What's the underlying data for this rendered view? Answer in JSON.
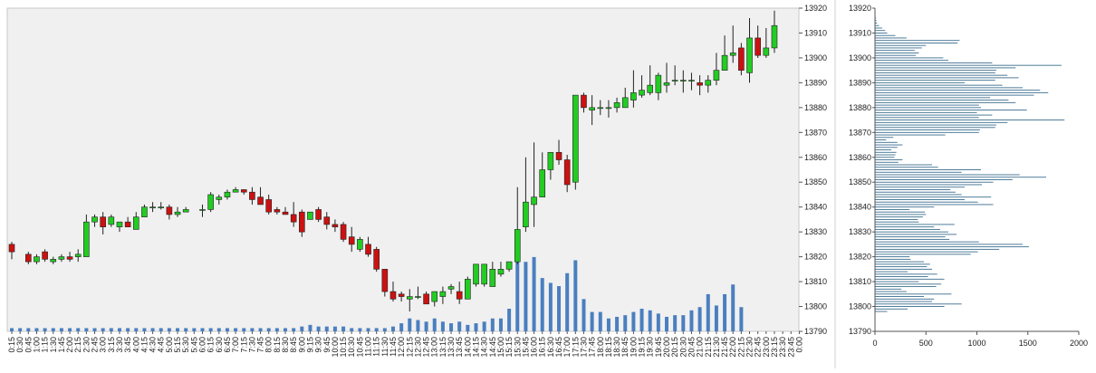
{
  "chart_data": [
    {
      "type": "candlestick",
      "title": "",
      "xlabel": "",
      "ylabel": "",
      "ylim": [
        13790,
        13920
      ],
      "yticks": [
        13790,
        13800,
        13810,
        13820,
        13830,
        13840,
        13850,
        13860,
        13870,
        13880,
        13890,
        13900,
        13910,
        13920
      ],
      "grid": false,
      "up_color": "#22cc22",
      "down_color": "#cc1111",
      "volume_color": "#4a7fc0",
      "plot_bg": "#f0f0f0",
      "x": [
        "0:15",
        "0:30",
        "0:45",
        "1:00",
        "1:15",
        "1:30",
        "1:45",
        "2:00",
        "2:15",
        "2:30",
        "2:45",
        "3:00",
        "3:15",
        "3:30",
        "3:45",
        "4:00",
        "4:15",
        "4:30",
        "4:45",
        "5:00",
        "5:15",
        "5:30",
        "5:45",
        "6:00",
        "6:15",
        "6:30",
        "6:45",
        "7:00",
        "7:15",
        "7:30",
        "7:45",
        "8:00",
        "8:15",
        "8:30",
        "8:45",
        "9:00",
        "9:15",
        "9:30",
        "9:45",
        "10:00",
        "10:15",
        "10:30",
        "10:45",
        "11:00",
        "11:15",
        "11:30",
        "11:45",
        "12:00",
        "12:15",
        "12:30",
        "12:45",
        "13:00",
        "13:15",
        "13:30",
        "13:45",
        "14:00",
        "14:15",
        "14:30",
        "14:45",
        "15:00",
        "15:15",
        "15:30",
        "15:45",
        "16:00",
        "16:15",
        "16:30",
        "16:45",
        "17:00",
        "17:15",
        "17:30",
        "17:45",
        "18:00",
        "18:15",
        "18:30",
        "18:45",
        "19:00",
        "19:15",
        "19:30",
        "19:45",
        "20:00",
        "20:15",
        "20:30",
        "20:45",
        "21:00",
        "21:15",
        "21:30",
        "21:45",
        "22:00",
        "22:15",
        "22:30",
        "22:45",
        "23:00",
        "23:15",
        "23:30",
        "23:45",
        "0:00"
      ],
      "ohlc": [
        [
          13825,
          13826,
          13819,
          13822
        ],
        null,
        [
          13821,
          13822,
          13817,
          13818
        ],
        [
          13818,
          13821,
          13817,
          13820
        ],
        [
          13822,
          13823,
          13818,
          13819
        ],
        [
          13818,
          13820,
          13817,
          13819
        ],
        [
          13819,
          13821,
          13818,
          13820
        ],
        [
          13820,
          13822,
          13818,
          13819
        ],
        [
          13820,
          13823,
          13818,
          13821
        ],
        [
          13820,
          13837,
          13820,
          13834
        ],
        [
          13834,
          13837,
          13832,
          13836
        ],
        [
          13836,
          13838,
          13829,
          13832
        ],
        [
          13833,
          13837,
          13832,
          13836
        ],
        [
          13832,
          13834,
          13830,
          13834
        ],
        [
          13834,
          13836,
          13832,
          13832
        ],
        [
          13831,
          13838,
          13831,
          13836
        ],
        [
          13836,
          13841,
          13836,
          13840
        ],
        [
          13840,
          13842,
          13838,
          13840
        ],
        [
          13840,
          13842,
          13839,
          13840
        ],
        [
          13840,
          13841,
          13835,
          13837
        ],
        [
          13837,
          13840,
          13836,
          13838
        ],
        [
          13838,
          13840,
          13838,
          13839
        ],
        null,
        [
          13839,
          13841,
          13836,
          13839
        ],
        [
          13839,
          13846,
          13838,
          13845
        ],
        [
          13843,
          13845,
          13841,
          13844
        ],
        [
          13844,
          13847,
          13843,
          13846
        ],
        [
          13846,
          13848,
          13846,
          13847
        ],
        [
          13847,
          13847,
          13845,
          13846
        ],
        [
          13846,
          13848,
          13841,
          13843
        ],
        [
          13844,
          13848,
          13841,
          13841
        ],
        [
          13843,
          13845,
          13837,
          13838
        ],
        [
          13839,
          13840,
          13837,
          13838
        ],
        [
          13838,
          13840,
          13837,
          13837
        ],
        [
          13837,
          13842,
          13832,
          13834
        ],
        [
          13838,
          13839,
          13828,
          13830
        ],
        [
          13835,
          13838,
          13835,
          13838
        ],
        [
          13839,
          13840,
          13834,
          13835
        ],
        [
          13836,
          13838,
          13831,
          13833
        ],
        [
          13833,
          13835,
          13830,
          13832
        ],
        [
          13833,
          13834,
          13826,
          13827
        ],
        [
          13828,
          13832,
          13822,
          13825
        ],
        [
          13823,
          13828,
          13822,
          13827
        ],
        [
          13825,
          13828,
          13820,
          13821
        ],
        [
          13823,
          13824,
          13814,
          13815
        ],
        [
          13815,
          13815,
          13804,
          13806
        ],
        [
          13806,
          13810,
          13802,
          13803
        ],
        [
          13805,
          13806,
          13802,
          13804
        ],
        [
          13803,
          13807,
          13798,
          13804
        ],
        [
          13804,
          13808,
          13803,
          13804
        ],
        [
          13805,
          13806,
          13801,
          13801
        ],
        [
          13802,
          13806,
          13800,
          13806
        ],
        [
          13804,
          13808,
          13801,
          13806
        ],
        [
          13807,
          13809,
          13805,
          13808
        ],
        [
          13806,
          13810,
          13801,
          13803
        ],
        [
          13803,
          13812,
          13803,
          13811
        ],
        [
          13809,
          13816,
          13808,
          13817
        ],
        [
          13809,
          13817,
          13808,
          13817
        ],
        [
          13808,
          13818,
          13808,
          13815
        ],
        [
          13813,
          13818,
          13812,
          13815
        ],
        [
          13815,
          13818,
          13814,
          13818
        ],
        [
          13818,
          13848,
          13817,
          13831
        ],
        [
          13832,
          13860,
          13830,
          13842
        ],
        [
          13841,
          13866,
          13832,
          13844
        ],
        [
          13844,
          13862,
          13844,
          13855
        ],
        [
          13855,
          13862,
          13851,
          13862
        ],
        [
          13862,
          13867,
          13857,
          13859
        ],
        [
          13859,
          13861,
          13846,
          13849
        ],
        [
          13850,
          13885,
          13847,
          13885
        ],
        [
          13885,
          13886,
          13878,
          13880
        ],
        [
          13879,
          13885,
          13873,
          13880
        ],
        [
          13880,
          13883,
          13877,
          13880
        ],
        [
          13880,
          13883,
          13876,
          13880
        ],
        [
          13880,
          13884,
          13878,
          13882
        ],
        [
          13880,
          13888,
          13880,
          13884
        ],
        [
          13883,
          13895,
          13880,
          13886
        ],
        [
          13885,
          13893,
          13884,
          13887
        ],
        [
          13886,
          13897,
          13885,
          13889
        ],
        [
          13886,
          13894,
          13883,
          13893
        ],
        [
          13889,
          13898,
          13886,
          13890
        ],
        [
          13891,
          13897,
          13889,
          13891
        ],
        [
          13891,
          13895,
          13886,
          13891
        ],
        [
          13891,
          13894,
          13887,
          13891
        ],
        [
          13890,
          13893,
          13885,
          13889
        ],
        [
          13889,
          13893,
          13886,
          13891
        ],
        [
          13891,
          13902,
          13889,
          13895
        ],
        [
          13895,
          13909,
          13895,
          13901
        ],
        [
          13901,
          13913,
          13898,
          13902
        ],
        [
          13904,
          13906,
          13893,
          13895
        ],
        [
          13894,
          13916,
          13890,
          13908
        ],
        [
          13908,
          13913,
          13900,
          13901
        ],
        [
          13901,
          13912,
          13900,
          13904
        ],
        [
          13904,
          13919,
          13902,
          13913
        ],
        null,
        null,
        null
      ],
      "volume": [
        0.2,
        0.2,
        0.2,
        0.2,
        0.2,
        0.2,
        0.2,
        0.2,
        0.2,
        0.2,
        0.2,
        0.2,
        0.2,
        0.2,
        0.2,
        0.2,
        0.2,
        0.2,
        0.2,
        0.2,
        0.2,
        0.2,
        0.2,
        0.2,
        0.2,
        0.2,
        0.2,
        0.2,
        0.2,
        0.2,
        0.2,
        0.2,
        0.2,
        0.2,
        0.2,
        0.3,
        0.4,
        0.3,
        0.3,
        0.3,
        0.3,
        0.2,
        0.2,
        0.2,
        0.2,
        0.2,
        0.3,
        0.5,
        0.8,
        0.7,
        0.6,
        0.8,
        0.6,
        0.5,
        0.6,
        0.4,
        0.5,
        0.6,
        0.8,
        0.8,
        1.4,
        4.5,
        4.3,
        4.6,
        3.3,
        3.0,
        2.8,
        3.6,
        4.4,
        2.0,
        1.2,
        1.2,
        0.8,
        0.9,
        1.0,
        1.2,
        1.4,
        1.3,
        1.1,
        0.9,
        1.0,
        1.0,
        1.3,
        1.5,
        2.3,
        1.6,
        2.3,
        2.9,
        1.5,
        0,
        0,
        0,
        0,
        0,
        0,
        0
      ],
      "volume_axis_max": 20
    },
    {
      "type": "bar",
      "orientation": "horizontal",
      "title": "",
      "xlabel": "",
      "ylabel": "",
      "xlim": [
        0,
        2000
      ],
      "xticks": [
        0,
        500,
        1000,
        1500,
        2000
      ],
      "ylim": [
        13790,
        13920
      ],
      "yticks": [
        13790,
        13800,
        13810,
        13820,
        13830,
        13840,
        13850,
        13860,
        13870,
        13880,
        13890,
        13900,
        13910,
        13920
      ],
      "bar_color": "#3b6e8f",
      "price_levels_start": 13798,
      "price_levels_step": 1,
      "values": [
        120,
        320,
        680,
        850,
        560,
        580,
        480,
        750,
        310,
        260,
        600,
        650,
        430,
        680,
        520,
        610,
        320,
        560,
        510,
        540,
        480,
        350,
        340,
        940,
        1010,
        1220,
        1510,
        1450,
        1020,
        730,
        690,
        800,
        720,
        640,
        580,
        780,
        430,
        420,
        470,
        500,
        490,
        340,
        580,
        1160,
        1010,
        880,
        1140,
        850,
        790,
        740,
        880,
        1050,
        1160,
        1350,
        1680,
        1420,
        850,
        1040,
        620,
        560,
        230,
        270,
        190,
        200,
        210,
        160,
        220,
        270,
        220,
        110,
        180,
        690,
        1020,
        1030,
        1180,
        1190,
        1300,
        1860,
        1020,
        1150,
        1000,
        1490,
        1040,
        1020,
        1380,
        1310,
        1130,
        1560,
        1700,
        1620,
        1450,
        1250,
        880,
        1180,
        1410,
        1300,
        1180,
        1190,
        1380,
        1830,
        1150,
        720,
        670,
        400,
        430,
        390,
        460,
        500,
        810,
        830,
        310,
        200,
        120,
        100,
        70,
        40,
        20,
        15,
        10
      ]
    }
  ]
}
